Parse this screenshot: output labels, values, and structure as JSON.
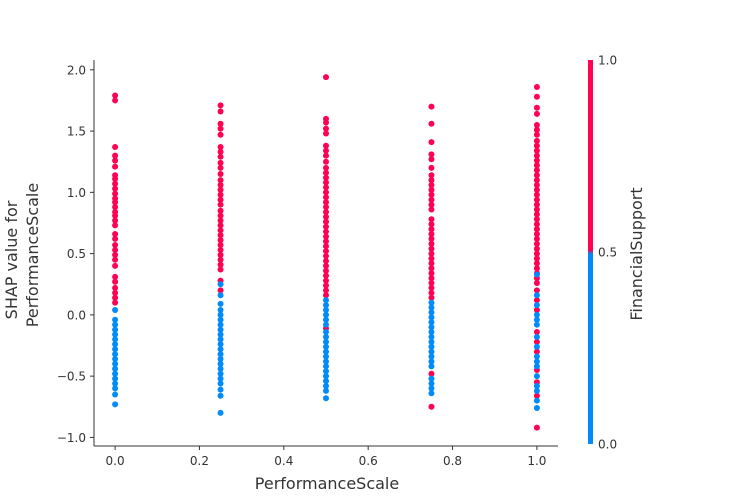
{
  "chart_data": {
    "type": "scatter",
    "title": "",
    "xlabel": "PerformanceScale",
    "ylabel_lines": [
      "SHAP value for",
      "PerformanceScale"
    ],
    "xlim": [
      -0.05,
      1.05
    ],
    "ylim": [
      -1.07,
      2.08
    ],
    "xticks": [
      0.0,
      0.2,
      0.4,
      0.6,
      0.8,
      1.0
    ],
    "xtick_labels": [
      "0.0",
      "0.2",
      "0.4",
      "0.6",
      "0.8",
      "1.0"
    ],
    "yticks": [
      -1.0,
      -0.5,
      0.0,
      0.5,
      1.0,
      1.5,
      2.0
    ],
    "ytick_labels": [
      "−1.0",
      "−0.5",
      "0.0",
      "0.5",
      "1.0",
      "1.5",
      "2.0"
    ],
    "grid": false,
    "colorbar": {
      "label": "FinancialSupport",
      "ticks": [
        0.0,
        0.5,
        1.0
      ],
      "tick_labels": [
        "0.0",
        "0.5",
        "1.0"
      ],
      "low_color": "#008bfb",
      "high_color": "#ff0052"
    },
    "series": [
      {
        "color_value": 1,
        "color": "#ff0052",
        "points": [
          [
            0.0,
            1.79
          ],
          [
            0.0,
            1.75
          ],
          [
            0.0,
            1.37
          ],
          [
            0.0,
            1.3
          ],
          [
            0.0,
            1.26
          ],
          [
            0.0,
            1.21
          ],
          [
            0.0,
            1.14
          ],
          [
            0.0,
            1.11
          ],
          [
            0.0,
            1.07
          ],
          [
            0.0,
            1.03
          ],
          [
            0.0,
            0.99
          ],
          [
            0.0,
            0.95
          ],
          [
            0.0,
            0.92
          ],
          [
            0.0,
            0.88
          ],
          [
            0.0,
            0.84
          ],
          [
            0.0,
            0.81
          ],
          [
            0.0,
            0.77
          ],
          [
            0.0,
            0.73
          ],
          [
            0.0,
            0.66
          ],
          [
            0.0,
            0.62
          ],
          [
            0.0,
            0.57
          ],
          [
            0.0,
            0.53
          ],
          [
            0.0,
            0.49
          ],
          [
            0.0,
            0.45
          ],
          [
            0.0,
            0.4
          ],
          [
            0.0,
            0.31
          ],
          [
            0.0,
            0.27
          ],
          [
            0.0,
            0.22
          ],
          [
            0.0,
            0.18
          ],
          [
            0.0,
            0.14
          ],
          [
            0.0,
            0.1
          ],
          [
            0.25,
            1.71
          ],
          [
            0.25,
            1.66
          ],
          [
            0.25,
            1.56
          ],
          [
            0.25,
            1.52
          ],
          [
            0.25,
            1.47
          ],
          [
            0.25,
            1.37
          ],
          [
            0.25,
            1.33
          ],
          [
            0.25,
            1.29
          ],
          [
            0.25,
            1.24
          ],
          [
            0.25,
            1.2
          ],
          [
            0.25,
            1.15
          ],
          [
            0.25,
            1.1
          ],
          [
            0.25,
            1.06
          ],
          [
            0.25,
            1.02
          ],
          [
            0.25,
            0.98
          ],
          [
            0.25,
            0.94
          ],
          [
            0.25,
            0.9
          ],
          [
            0.25,
            0.85
          ],
          [
            0.25,
            0.81
          ],
          [
            0.25,
            0.77
          ],
          [
            0.25,
            0.73
          ],
          [
            0.25,
            0.69
          ],
          [
            0.25,
            0.65
          ],
          [
            0.25,
            0.61
          ],
          [
            0.25,
            0.57
          ],
          [
            0.25,
            0.53
          ],
          [
            0.25,
            0.49
          ],
          [
            0.25,
            0.45
          ],
          [
            0.25,
            0.41
          ],
          [
            0.25,
            0.37
          ],
          [
            0.25,
            0.28
          ],
          [
            0.25,
            0.2
          ],
          [
            0.5,
            1.94
          ],
          [
            0.5,
            1.6
          ],
          [
            0.5,
            1.57
          ],
          [
            0.5,
            1.52
          ],
          [
            0.5,
            1.48
          ],
          [
            0.5,
            1.38
          ],
          [
            0.5,
            1.34
          ],
          [
            0.5,
            1.3
          ],
          [
            0.5,
            1.25
          ],
          [
            0.5,
            1.2
          ],
          [
            0.5,
            1.16
          ],
          [
            0.5,
            1.12
          ],
          [
            0.5,
            1.08
          ],
          [
            0.5,
            1.04
          ],
          [
            0.5,
            1.0
          ],
          [
            0.5,
            0.96
          ],
          [
            0.5,
            0.92
          ],
          [
            0.5,
            0.88
          ],
          [
            0.5,
            0.84
          ],
          [
            0.5,
            0.8
          ],
          [
            0.5,
            0.76
          ],
          [
            0.5,
            0.72
          ],
          [
            0.5,
            0.68
          ],
          [
            0.5,
            0.64
          ],
          [
            0.5,
            0.6
          ],
          [
            0.5,
            0.56
          ],
          [
            0.5,
            0.52
          ],
          [
            0.5,
            0.48
          ],
          [
            0.5,
            0.44
          ],
          [
            0.5,
            0.4
          ],
          [
            0.5,
            0.36
          ],
          [
            0.5,
            0.32
          ],
          [
            0.5,
            0.28
          ],
          [
            0.5,
            0.24
          ],
          [
            0.5,
            0.2
          ],
          [
            0.5,
            0.16
          ],
          [
            0.5,
            -0.11
          ],
          [
            0.75,
            1.7
          ],
          [
            0.75,
            1.56
          ],
          [
            0.75,
            1.41
          ],
          [
            0.75,
            1.31
          ],
          [
            0.75,
            1.27
          ],
          [
            0.75,
            1.2
          ],
          [
            0.75,
            1.14
          ],
          [
            0.75,
            1.1
          ],
          [
            0.75,
            1.06
          ],
          [
            0.75,
            1.02
          ],
          [
            0.75,
            0.98
          ],
          [
            0.75,
            0.94
          ],
          [
            0.75,
            0.9
          ],
          [
            0.75,
            0.86
          ],
          [
            0.75,
            0.78
          ],
          [
            0.75,
            0.74
          ],
          [
            0.75,
            0.7
          ],
          [
            0.75,
            0.66
          ],
          [
            0.75,
            0.62
          ],
          [
            0.75,
            0.58
          ],
          [
            0.75,
            0.54
          ],
          [
            0.75,
            0.5
          ],
          [
            0.75,
            0.46
          ],
          [
            0.75,
            0.42
          ],
          [
            0.75,
            0.38
          ],
          [
            0.75,
            0.34
          ],
          [
            0.75,
            0.3
          ],
          [
            0.75,
            0.26
          ],
          [
            0.75,
            0.22
          ],
          [
            0.75,
            0.18
          ],
          [
            0.75,
            0.14
          ],
          [
            0.75,
            -0.48
          ],
          [
            0.75,
            -0.75
          ],
          [
            1.0,
            1.86
          ],
          [
            1.0,
            1.78
          ],
          [
            1.0,
            1.69
          ],
          [
            1.0,
            1.64
          ],
          [
            1.0,
            1.55
          ],
          [
            1.0,
            1.51
          ],
          [
            1.0,
            1.47
          ],
          [
            1.0,
            1.42
          ],
          [
            1.0,
            1.38
          ],
          [
            1.0,
            1.34
          ],
          [
            1.0,
            1.3
          ],
          [
            1.0,
            1.26
          ],
          [
            1.0,
            1.22
          ],
          [
            1.0,
            1.18
          ],
          [
            1.0,
            1.14
          ],
          [
            1.0,
            1.1
          ],
          [
            1.0,
            1.06
          ],
          [
            1.0,
            1.02
          ],
          [
            1.0,
            0.98
          ],
          [
            1.0,
            0.94
          ],
          [
            1.0,
            0.9
          ],
          [
            1.0,
            0.86
          ],
          [
            1.0,
            0.82
          ],
          [
            1.0,
            0.78
          ],
          [
            1.0,
            0.74
          ],
          [
            1.0,
            0.7
          ],
          [
            1.0,
            0.66
          ],
          [
            1.0,
            0.62
          ],
          [
            1.0,
            0.58
          ],
          [
            1.0,
            0.54
          ],
          [
            1.0,
            0.5
          ],
          [
            1.0,
            0.46
          ],
          [
            1.0,
            0.42
          ],
          [
            1.0,
            0.38
          ],
          [
            1.0,
            0.34
          ],
          [
            1.0,
            0.3
          ],
          [
            1.0,
            0.26
          ],
          [
            1.0,
            0.2
          ],
          [
            1.0,
            0.12
          ],
          [
            1.0,
            0.04
          ],
          [
            1.0,
            -0.14
          ],
          [
            1.0,
            -0.22
          ],
          [
            1.0,
            -0.3
          ],
          [
            1.0,
            -0.45
          ],
          [
            1.0,
            -0.55
          ],
          [
            1.0,
            -0.66
          ],
          [
            1.0,
            -0.92
          ]
        ]
      },
      {
        "color_value": 0,
        "color": "#008bfb",
        "points": [
          [
            0.0,
            0.04
          ],
          [
            0.0,
            -0.04
          ],
          [
            0.0,
            -0.08
          ],
          [
            0.0,
            -0.12
          ],
          [
            0.0,
            -0.16
          ],
          [
            0.0,
            -0.2
          ],
          [
            0.0,
            -0.24
          ],
          [
            0.0,
            -0.28
          ],
          [
            0.0,
            -0.32
          ],
          [
            0.0,
            -0.36
          ],
          [
            0.0,
            -0.4
          ],
          [
            0.0,
            -0.44
          ],
          [
            0.0,
            -0.48
          ],
          [
            0.0,
            -0.52
          ],
          [
            0.0,
            -0.56
          ],
          [
            0.0,
            -0.6
          ],
          [
            0.0,
            -0.65
          ],
          [
            0.0,
            -0.73
          ],
          [
            0.25,
            0.25
          ],
          [
            0.25,
            0.16
          ],
          [
            0.25,
            0.09
          ],
          [
            0.25,
            0.04
          ],
          [
            0.25,
            0.0
          ],
          [
            0.25,
            -0.04
          ],
          [
            0.25,
            -0.08
          ],
          [
            0.25,
            -0.12
          ],
          [
            0.25,
            -0.16
          ],
          [
            0.25,
            -0.2
          ],
          [
            0.25,
            -0.24
          ],
          [
            0.25,
            -0.28
          ],
          [
            0.25,
            -0.32
          ],
          [
            0.25,
            -0.36
          ],
          [
            0.25,
            -0.4
          ],
          [
            0.25,
            -0.44
          ],
          [
            0.25,
            -0.48
          ],
          [
            0.25,
            -0.52
          ],
          [
            0.25,
            -0.56
          ],
          [
            0.25,
            -0.61
          ],
          [
            0.25,
            -0.66
          ],
          [
            0.25,
            -0.8
          ],
          [
            0.5,
            0.12
          ],
          [
            0.5,
            0.08
          ],
          [
            0.5,
            0.04
          ],
          [
            0.5,
            0.0
          ],
          [
            0.5,
            -0.04
          ],
          [
            0.5,
            -0.08
          ],
          [
            0.5,
            -0.14
          ],
          [
            0.5,
            -0.18
          ],
          [
            0.5,
            -0.22
          ],
          [
            0.5,
            -0.26
          ],
          [
            0.5,
            -0.3
          ],
          [
            0.5,
            -0.34
          ],
          [
            0.5,
            -0.38
          ],
          [
            0.5,
            -0.42
          ],
          [
            0.5,
            -0.46
          ],
          [
            0.5,
            -0.5
          ],
          [
            0.5,
            -0.54
          ],
          [
            0.5,
            -0.58
          ],
          [
            0.5,
            -0.62
          ],
          [
            0.5,
            -0.68
          ],
          [
            0.75,
            0.1
          ],
          [
            0.75,
            0.06
          ],
          [
            0.75,
            0.02
          ],
          [
            0.75,
            -0.02
          ],
          [
            0.75,
            -0.06
          ],
          [
            0.75,
            -0.1
          ],
          [
            0.75,
            -0.14
          ],
          [
            0.75,
            -0.18
          ],
          [
            0.75,
            -0.22
          ],
          [
            0.75,
            -0.26
          ],
          [
            0.75,
            -0.3
          ],
          [
            0.75,
            -0.34
          ],
          [
            0.75,
            -0.38
          ],
          [
            0.75,
            -0.42
          ],
          [
            0.75,
            -0.52
          ],
          [
            0.75,
            -0.56
          ],
          [
            0.75,
            -0.6
          ],
          [
            0.75,
            -0.64
          ],
          [
            1.0,
            0.33
          ],
          [
            1.0,
            0.16
          ],
          [
            1.0,
            0.08
          ],
          [
            1.0,
            0.0
          ],
          [
            1.0,
            -0.04
          ],
          [
            1.0,
            -0.08
          ],
          [
            1.0,
            -0.18
          ],
          [
            1.0,
            -0.26
          ],
          [
            1.0,
            -0.34
          ],
          [
            1.0,
            -0.38
          ],
          [
            1.0,
            -0.42
          ],
          [
            1.0,
            -0.5
          ],
          [
            1.0,
            -0.58
          ],
          [
            1.0,
            -0.62
          ],
          [
            1.0,
            -0.7
          ],
          [
            1.0,
            -0.76
          ]
        ]
      }
    ]
  }
}
